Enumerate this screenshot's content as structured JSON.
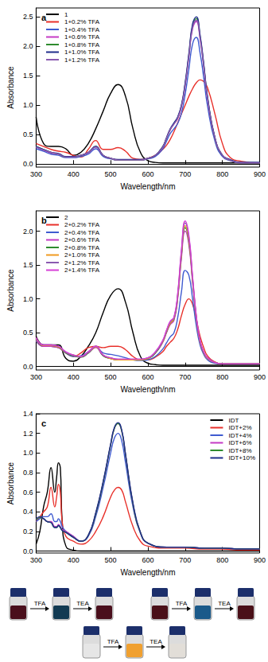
{
  "chart_data": [
    {
      "type": "line",
      "title": "a",
      "x_label": "Wavelength/nm",
      "y_label": "Absorbance",
      "xlim": [
        300,
        900
      ],
      "xticks": [
        300,
        400,
        500,
        600,
        700,
        800,
        900
      ],
      "ylim": [
        -0.05,
        2.65
      ],
      "yticks": [
        {
          "value": 0,
          "label": "0.0"
        },
        0.5,
        {
          "value": 1,
          "label": "1.0"
        },
        1.5,
        {
          "value": 2,
          "label": "2.0"
        },
        2.5
      ],
      "grid": false,
      "legend": "upper left",
      "x": [
        300,
        320,
        340,
        360,
        380,
        400,
        420,
        440,
        460,
        480,
        500,
        520,
        540,
        560,
        580,
        600,
        620,
        640,
        650,
        660,
        670,
        680,
        690,
        700,
        710,
        720,
        730,
        740,
        750,
        760,
        780,
        800,
        820,
        850,
        900
      ],
      "series": [
        {
          "name": "1",
          "color": "#000000",
          "values": [
            0.8,
            0.35,
            0.3,
            0.3,
            0.26,
            0.15,
            0.2,
            0.35,
            0.6,
            0.9,
            1.2,
            1.35,
            1.15,
            0.6,
            0.2,
            0.06,
            0.03,
            0.02,
            0.02,
            0.02,
            0.02,
            0.02,
            0.02,
            0.02,
            0.02,
            0.02,
            0.02,
            0.02,
            0.02,
            0.02,
            0.02,
            0.02,
            0.02,
            0.02,
            0.02
          ]
        },
        {
          "name": "1+0.2% TFA",
          "color": "#e8302a",
          "values": [
            0.35,
            0.3,
            0.25,
            0.22,
            0.2,
            0.15,
            0.12,
            0.25,
            0.4,
            0.25,
            0.25,
            0.28,
            0.22,
            0.1,
            0.08,
            0.1,
            0.15,
            0.25,
            0.32,
            0.42,
            0.55,
            0.7,
            0.85,
            1.0,
            1.15,
            1.28,
            1.38,
            1.43,
            1.4,
            1.3,
            0.85,
            0.35,
            0.12,
            0.05,
            0.02
          ]
        },
        {
          "name": "1+0.4% TFA",
          "color": "#3f5bd0",
          "values": [
            0.26,
            0.22,
            0.17,
            0.15,
            0.11,
            0.11,
            0.13,
            0.17,
            0.26,
            0.13,
            0.09,
            0.07,
            0.07,
            0.07,
            0.07,
            0.09,
            0.13,
            0.26,
            0.39,
            0.52,
            0.6,
            0.69,
            0.86,
            1.18,
            1.61,
            2.04,
            2.15,
            1.89,
            1.46,
            0.99,
            0.39,
            0.13,
            0.06,
            0.02,
            0.02
          ]
        },
        {
          "name": "1+0.6% TFA",
          "color": "#c43ac4",
          "values": [
            0.29,
            0.24,
            0.19,
            0.17,
            0.12,
            0.12,
            0.15,
            0.19,
            0.29,
            0.15,
            0.1,
            0.07,
            0.07,
            0.07,
            0.07,
            0.1,
            0.15,
            0.29,
            0.44,
            0.58,
            0.68,
            0.77,
            0.97,
            1.33,
            1.82,
            2.3,
            2.42,
            2.13,
            1.65,
            1.11,
            0.44,
            0.15,
            0.07,
            0.02,
            0.02
          ]
        },
        {
          "name": "1+0.8% TFA",
          "color": "#2e8b2e",
          "values": [
            0.3,
            0.25,
            0.2,
            0.17,
            0.12,
            0.12,
            0.15,
            0.2,
            0.3,
            0.15,
            0.1,
            0.07,
            0.07,
            0.07,
            0.07,
            0.1,
            0.15,
            0.3,
            0.44,
            0.59,
            0.69,
            0.79,
            0.99,
            1.36,
            1.85,
            2.35,
            2.47,
            2.17,
            1.68,
            1.14,
            0.44,
            0.15,
            0.07,
            0.02,
            0.02
          ]
        },
        {
          "name": "1+1.0% TFA",
          "color": "#1f2d8a",
          "values": [
            0.3,
            0.25,
            0.2,
            0.18,
            0.13,
            0.13,
            0.15,
            0.2,
            0.3,
            0.15,
            0.1,
            0.08,
            0.08,
            0.08,
            0.08,
            0.1,
            0.15,
            0.3,
            0.45,
            0.6,
            0.7,
            0.8,
            1.0,
            1.38,
            1.88,
            2.38,
            2.5,
            2.2,
            1.7,
            1.15,
            0.45,
            0.15,
            0.08,
            0.03,
            0.03
          ]
        },
        {
          "name": "1+1.2% TFA",
          "color": "#8a5ab0",
          "values": [
            0.29,
            0.24,
            0.2,
            0.17,
            0.12,
            0.12,
            0.15,
            0.2,
            0.29,
            0.15,
            0.1,
            0.07,
            0.07,
            0.07,
            0.07,
            0.1,
            0.15,
            0.29,
            0.44,
            0.59,
            0.68,
            0.78,
            0.98,
            1.34,
            1.83,
            2.32,
            2.44,
            2.15,
            1.66,
            1.12,
            0.44,
            0.15,
            0.07,
            0.02,
            0.02
          ]
        }
      ]
    },
    {
      "type": "line",
      "title": "b",
      "x_label": "Wavelength/nm",
      "y_label": "Absorbance",
      "xlim": [
        300,
        900
      ],
      "xticks": [
        300,
        400,
        500,
        600,
        700,
        800,
        900
      ],
      "ylim": [
        -0.05,
        2.3
      ],
      "yticks": [
        {
          "value": 0,
          "label": "0.0"
        },
        0.5,
        {
          "value": 1,
          "label": "1.0"
        },
        1.5,
        {
          "value": 2,
          "label": "2.0"
        }
      ],
      "grid": false,
      "legend": "upper left",
      "x": [
        300,
        320,
        340,
        360,
        380,
        400,
        420,
        440,
        460,
        480,
        500,
        520,
        540,
        560,
        580,
        600,
        620,
        640,
        650,
        660,
        670,
        680,
        690,
        700,
        710,
        720,
        730,
        740,
        750,
        760,
        780,
        800,
        820,
        850,
        900
      ],
      "series": [
        {
          "name": "2",
          "color": "#000000",
          "values": [
            0.45,
            0.32,
            0.32,
            0.32,
            0.12,
            0.08,
            0.15,
            0.3,
            0.5,
            0.8,
            1.05,
            1.15,
            0.95,
            0.5,
            0.15,
            0.05,
            0.03,
            0.02,
            0.02,
            0.02,
            0.02,
            0.02,
            0.02,
            0.02,
            0.02,
            0.02,
            0.02,
            0.02,
            0.02,
            0.02,
            0.02,
            0.02,
            0.02,
            0.02,
            0.02
          ]
        },
        {
          "name": "2+0.2% TFA",
          "color": "#e8302a",
          "values": [
            0.38,
            0.3,
            0.3,
            0.28,
            0.2,
            0.15,
            0.2,
            0.28,
            0.3,
            0.28,
            0.3,
            0.3,
            0.25,
            0.15,
            0.1,
            0.1,
            0.14,
            0.22,
            0.3,
            0.36,
            0.42,
            0.55,
            0.75,
            0.92,
            1.0,
            0.92,
            0.7,
            0.45,
            0.28,
            0.16,
            0.07,
            0.04,
            0.04,
            0.04,
            0.04
          ]
        },
        {
          "name": "2+0.4% TFA",
          "color": "#3f5bd0",
          "values": [
            0.38,
            0.3,
            0.3,
            0.28,
            0.2,
            0.15,
            0.16,
            0.22,
            0.3,
            0.2,
            0.18,
            0.16,
            0.13,
            0.1,
            0.09,
            0.1,
            0.15,
            0.26,
            0.35,
            0.44,
            0.5,
            0.72,
            1.1,
            1.42,
            1.35,
            1.0,
            0.6,
            0.32,
            0.18,
            0.1,
            0.05,
            0.04,
            0.04,
            0.04,
            0.04
          ]
        },
        {
          "name": "2+0.6% TFA",
          "color": "#c43ac4",
          "values": [
            0.4,
            0.3,
            0.3,
            0.28,
            0.2,
            0.16,
            0.14,
            0.2,
            0.28,
            0.16,
            0.12,
            0.1,
            0.1,
            0.1,
            0.1,
            0.12,
            0.2,
            0.36,
            0.5,
            0.62,
            0.68,
            1.0,
            1.6,
            2.0,
            1.8,
            1.24,
            0.7,
            0.36,
            0.2,
            0.12,
            0.06,
            0.04,
            0.04,
            0.04,
            0.04
          ]
        },
        {
          "name": "2+0.8% TFA",
          "color": "#2e8b2e",
          "values": [
            0.41,
            0.31,
            0.31,
            0.29,
            0.2,
            0.16,
            0.14,
            0.2,
            0.29,
            0.16,
            0.12,
            0.1,
            0.1,
            0.1,
            0.1,
            0.12,
            0.2,
            0.37,
            0.51,
            0.64,
            0.7,
            1.03,
            1.64,
            2.05,
            1.85,
            1.27,
            0.72,
            0.37,
            0.2,
            0.12,
            0.06,
            0.04,
            0.04,
            0.04,
            0.04
          ]
        },
        {
          "name": "2+1.0% TFA",
          "color": "#f09a20",
          "values": [
            0.42,
            0.31,
            0.31,
            0.29,
            0.21,
            0.17,
            0.15,
            0.21,
            0.29,
            0.17,
            0.12,
            0.1,
            0.1,
            0.1,
            0.1,
            0.12,
            0.21,
            0.37,
            0.52,
            0.64,
            0.71,
            1.04,
            1.66,
            2.08,
            1.87,
            1.29,
            0.73,
            0.37,
            0.21,
            0.12,
            0.06,
            0.04,
            0.04,
            0.04,
            0.04
          ]
        },
        {
          "name": "2+1.2% TFA",
          "color": "#8a5ab0",
          "values": [
            0.42,
            0.32,
            0.32,
            0.3,
            0.21,
            0.17,
            0.15,
            0.21,
            0.3,
            0.17,
            0.13,
            0.11,
            0.11,
            0.11,
            0.11,
            0.13,
            0.21,
            0.38,
            0.53,
            0.66,
            0.72,
            1.06,
            1.7,
            2.12,
            1.91,
            1.31,
            0.74,
            0.38,
            0.21,
            0.13,
            0.06,
            0.04,
            0.04,
            0.04,
            0.04
          ]
        },
        {
          "name": "2+1.4% TFA",
          "color": "#d63fd6",
          "values": [
            0.43,
            0.32,
            0.32,
            0.3,
            0.22,
            0.17,
            0.15,
            0.22,
            0.3,
            0.17,
            0.13,
            0.11,
            0.11,
            0.11,
            0.11,
            0.13,
            0.22,
            0.39,
            0.54,
            0.67,
            0.73,
            1.08,
            1.72,
            2.15,
            1.94,
            1.33,
            0.75,
            0.39,
            0.22,
            0.13,
            0.06,
            0.04,
            0.04,
            0.04,
            0.04
          ]
        }
      ]
    },
    {
      "type": "line",
      "title": "c",
      "x_label": "Wavelength/nm",
      "y_label": "Absorbance",
      "xlim": [
        300,
        900
      ],
      "xticks": [
        300,
        400,
        500,
        600,
        700,
        800,
        900
      ],
      "ylim": [
        -0.02,
        1.4
      ],
      "yticks": [
        {
          "value": 0,
          "label": "0.0"
        },
        0.2,
        0.4,
        0.6,
        0.8,
        {
          "value": 1,
          "label": "1.0"
        },
        1.2,
        1.4
      ],
      "grid": false,
      "legend": "upper right",
      "x": [
        300,
        310,
        320,
        330,
        340,
        350,
        355,
        360,
        365,
        370,
        380,
        400,
        420,
        440,
        460,
        480,
        500,
        510,
        520,
        530,
        540,
        560,
        580,
        600,
        650,
        700,
        750,
        800,
        850,
        900
      ],
      "series": [
        {
          "name": "IDT",
          "color": "#000000",
          "values": [
            0.07,
            0.2,
            0.45,
            0.6,
            0.85,
            0.6,
            0.75,
            0.9,
            0.85,
            0.3,
            0.05,
            0.01,
            0,
            0,
            0,
            0,
            0,
            0,
            0,
            0,
            0,
            0,
            0,
            0,
            0,
            0,
            0,
            0,
            0,
            0
          ]
        },
        {
          "name": "IDT+2%",
          "color": "#e8302a",
          "values": [
            0.3,
            0.35,
            0.4,
            0.45,
            0.65,
            0.45,
            0.55,
            0.68,
            0.6,
            0.3,
            0.15,
            0.1,
            0.07,
            0.1,
            0.2,
            0.35,
            0.55,
            0.62,
            0.65,
            0.62,
            0.5,
            0.25,
            0.1,
            0.05,
            0.03,
            0.03,
            0.02,
            0.02,
            0.01,
            0.01
          ]
        },
        {
          "name": "IDT+4%",
          "color": "#3f5bd0",
          "values": [
            0.3,
            0.33,
            0.35,
            0.35,
            0.38,
            0.3,
            0.3,
            0.33,
            0.3,
            0.25,
            0.2,
            0.15,
            0.1,
            0.15,
            0.35,
            0.65,
            1.0,
            1.15,
            1.2,
            1.12,
            0.9,
            0.45,
            0.18,
            0.08,
            0.04,
            0.04,
            0.03,
            0.03,
            0.02,
            0.02
          ]
        },
        {
          "name": "IDT+6%",
          "color": "#c43ac4",
          "values": [
            0.32,
            0.34,
            0.33,
            0.3,
            0.3,
            0.25,
            0.25,
            0.27,
            0.25,
            0.22,
            0.2,
            0.15,
            0.1,
            0.16,
            0.38,
            0.7,
            1.08,
            1.25,
            1.3,
            1.22,
            0.98,
            0.48,
            0.19,
            0.08,
            0.04,
            0.04,
            0.03,
            0.03,
            0.02,
            0.02
          ]
        },
        {
          "name": "IDT+8%",
          "color": "#2e8b2e",
          "values": [
            0.32,
            0.34,
            0.33,
            0.3,
            0.29,
            0.24,
            0.24,
            0.26,
            0.24,
            0.21,
            0.19,
            0.14,
            0.1,
            0.16,
            0.38,
            0.7,
            1.08,
            1.25,
            1.3,
            1.22,
            0.98,
            0.48,
            0.19,
            0.08,
            0.04,
            0.04,
            0.03,
            0.03,
            0.02,
            0.02
          ]
        },
        {
          "name": "IDT+10%",
          "color": "#1f2d8a",
          "values": [
            0.33,
            0.35,
            0.33,
            0.3,
            0.29,
            0.24,
            0.24,
            0.26,
            0.24,
            0.21,
            0.19,
            0.14,
            0.1,
            0.16,
            0.39,
            0.71,
            1.09,
            1.26,
            1.31,
            1.23,
            0.99,
            0.49,
            0.19,
            0.08,
            0.04,
            0.04,
            0.03,
            0.03,
            0.02,
            0.02
          ]
        }
      ]
    }
  ],
  "photos": [
    {
      "colors": [
        "#4a0f1c",
        "#123a52",
        "#4a0f1c"
      ],
      "arrows": [
        "TFA",
        "TEA"
      ]
    },
    {
      "colors": [
        "#4a1018",
        "#1b5a8a",
        "#4a1018"
      ],
      "arrows": [
        "TFA",
        "TEA"
      ]
    },
    {
      "colors": [
        "#e6e6e6",
        "#f0a030",
        "#e2ded8"
      ],
      "arrows": [
        "TFA",
        "TEA"
      ]
    }
  ]
}
